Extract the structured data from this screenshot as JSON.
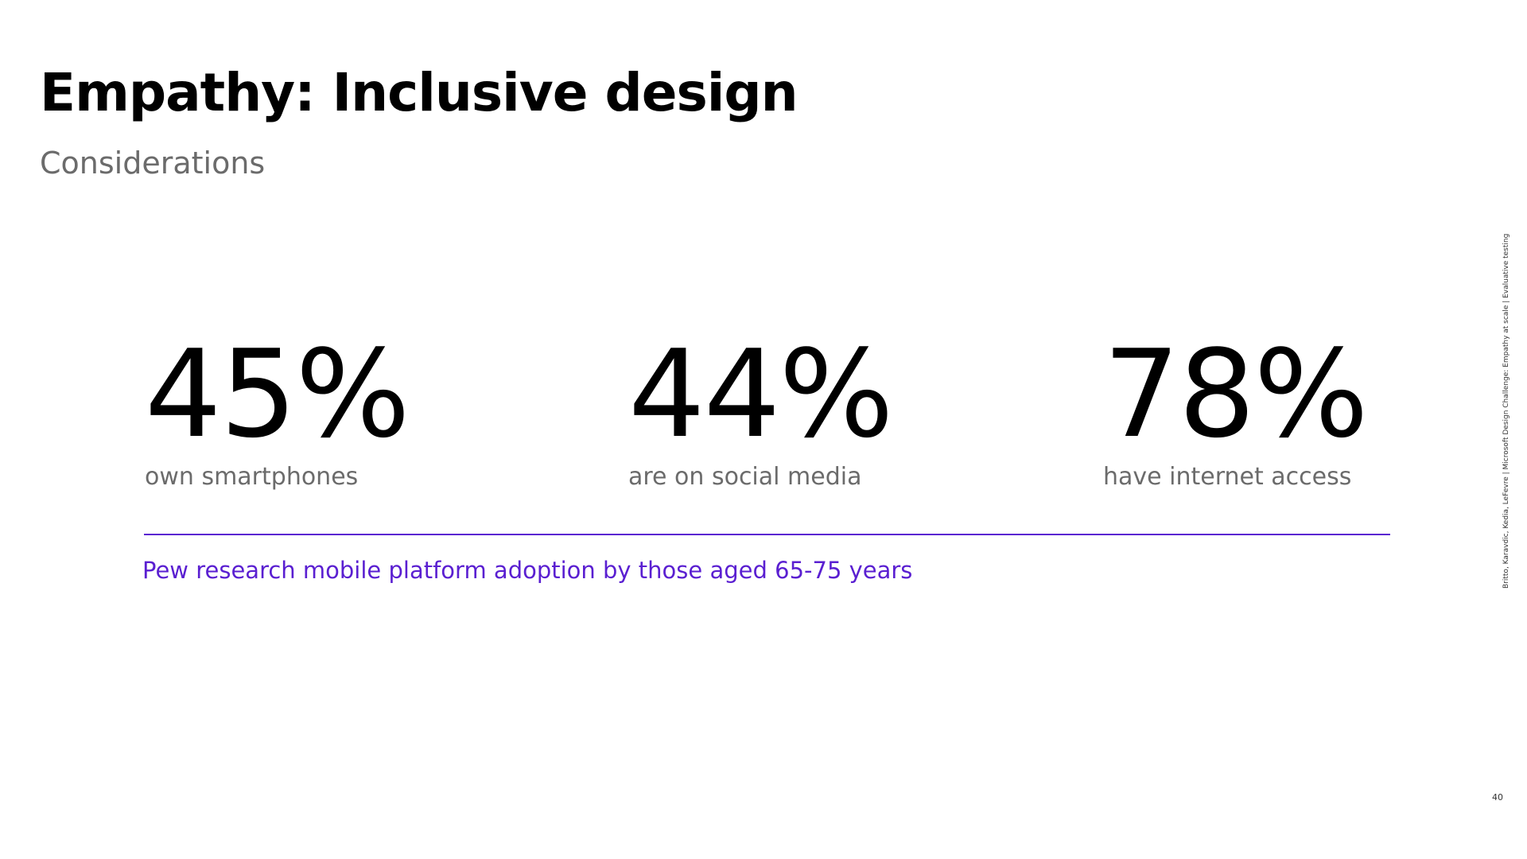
{
  "slide": {
    "title": "Empathy: Inclusive design",
    "subtitle": "Considerations",
    "stats": [
      {
        "value": "45%",
        "label": "own smartphones"
      },
      {
        "value": "44%",
        "label": "are on social media"
      },
      {
        "value": "78%",
        "label": "have internet access"
      }
    ],
    "caption": "Pew research mobile platform adoption by those aged 65-75 years",
    "sidenote": "Britto, Karavdic, Kedia, LeFevre | Microsoft Design Challenge: Empathy at scale | Evaluative testing",
    "page_number": "40"
  },
  "colors": {
    "accent": "#5a1fd1",
    "title": "#000000",
    "muted": "#6b6b6b"
  }
}
